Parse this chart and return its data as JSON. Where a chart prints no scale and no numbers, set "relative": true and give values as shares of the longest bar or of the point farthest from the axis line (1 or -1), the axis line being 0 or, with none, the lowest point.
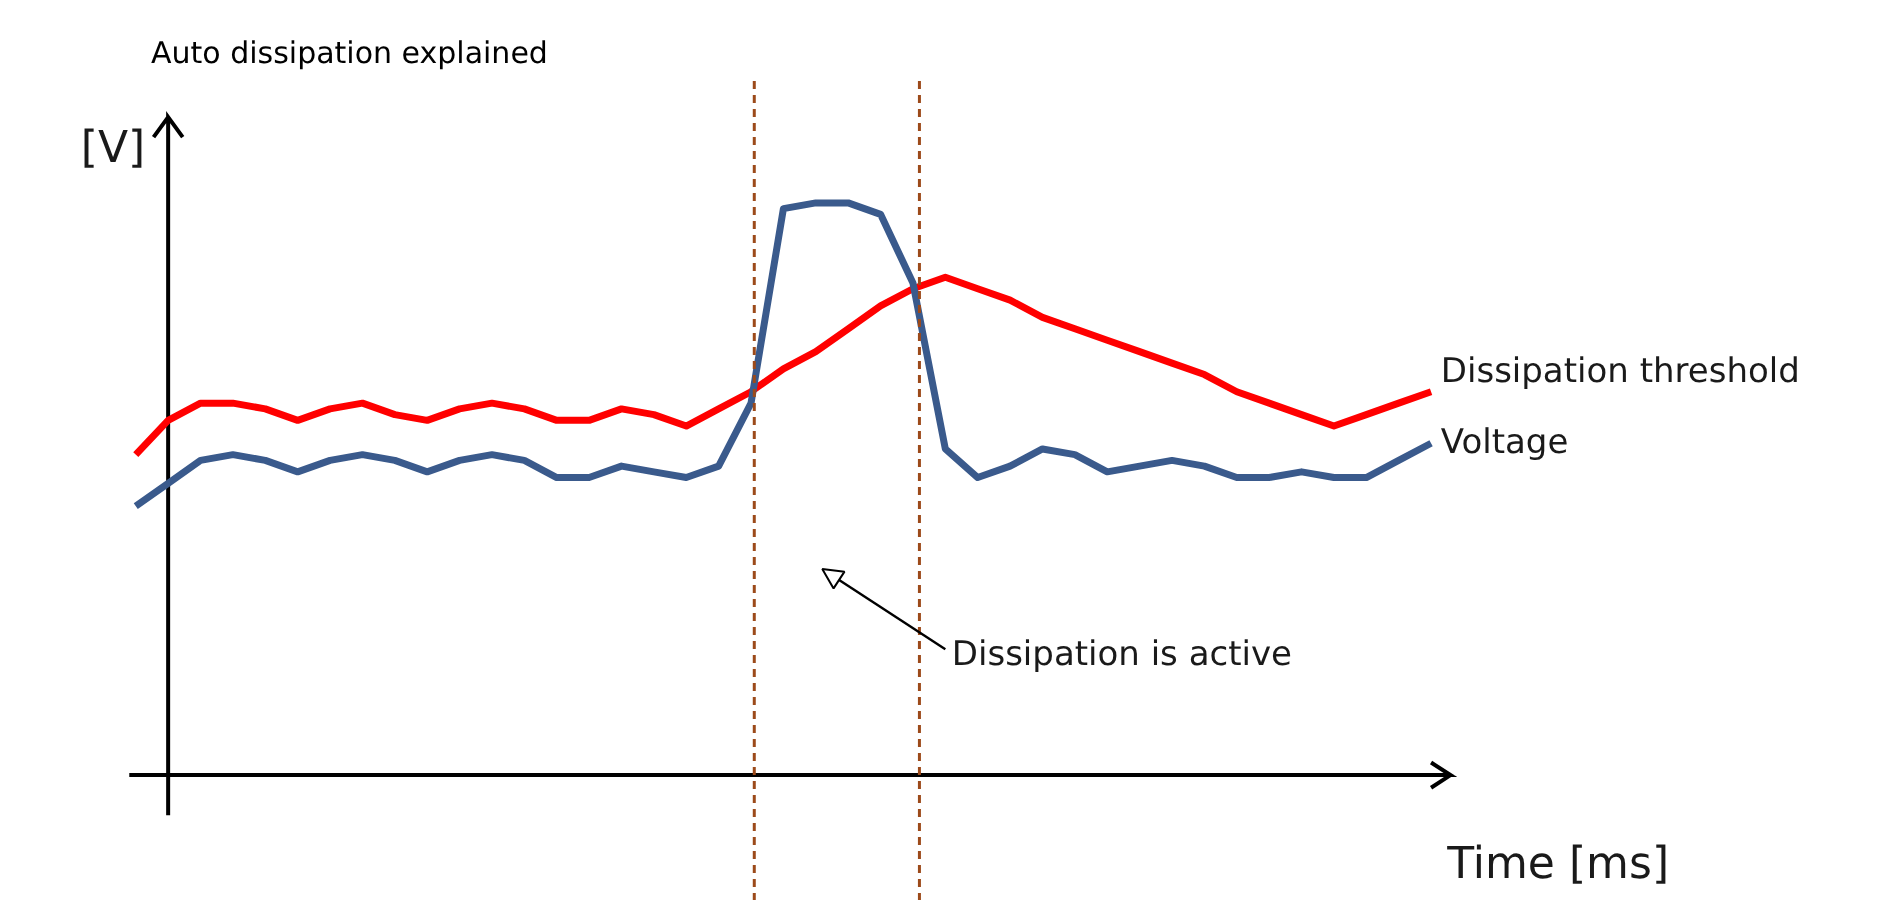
{
  "chart_data": {
    "type": "line",
    "title": "Auto dissipation explained",
    "xlabel": "Time [ms]",
    "ylabel": "[V]",
    "relative": true,
    "grid": false,
    "legend": false,
    "marker": "none",
    "line_style": "solid",
    "categories": [
      null,
      null,
      null,
      null,
      null,
      null,
      null,
      null,
      null,
      null,
      null,
      null,
      null,
      null,
      null,
      null,
      null,
      null,
      null,
      null,
      null,
      null,
      null,
      null,
      null,
      null,
      null,
      null,
      null,
      null,
      null,
      null,
      null,
      null,
      null,
      null,
      null,
      null,
      null,
      null,
      null
    ],
    "series": [
      {
        "name": "Dissipation threshold",
        "color": "#ff0000",
        "values": [
          0.56,
          0.62,
          0.65,
          0.65,
          0.64,
          0.62,
          0.64,
          0.65,
          0.63,
          0.62,
          0.64,
          0.65,
          0.64,
          0.62,
          0.62,
          0.64,
          0.63,
          0.61,
          0.64,
          0.67,
          0.71,
          0.74,
          0.78,
          0.82,
          0.85,
          0.87,
          0.85,
          0.83,
          0.8,
          0.78,
          0.76,
          0.74,
          0.72,
          0.7,
          0.67,
          0.65,
          0.63,
          0.61,
          0.63,
          0.65,
          0.67
        ]
      },
      {
        "name": "Voltage",
        "color": "#3a5a8c",
        "values": [
          0.47,
          0.51,
          0.55,
          0.56,
          0.55,
          0.53,
          0.55,
          0.56,
          0.55,
          0.53,
          0.55,
          0.56,
          0.55,
          0.52,
          0.52,
          0.54,
          0.53,
          0.52,
          0.54,
          0.65,
          0.99,
          1.0,
          1.0,
          0.98,
          0.86,
          0.57,
          0.52,
          0.54,
          0.57,
          0.56,
          0.53,
          0.54,
          0.55,
          0.54,
          0.52,
          0.52,
          0.53,
          0.52,
          0.52,
          0.55,
          0.58
        ]
      }
    ],
    "annotations": [
      "Dissipation is active"
    ]
  }
}
